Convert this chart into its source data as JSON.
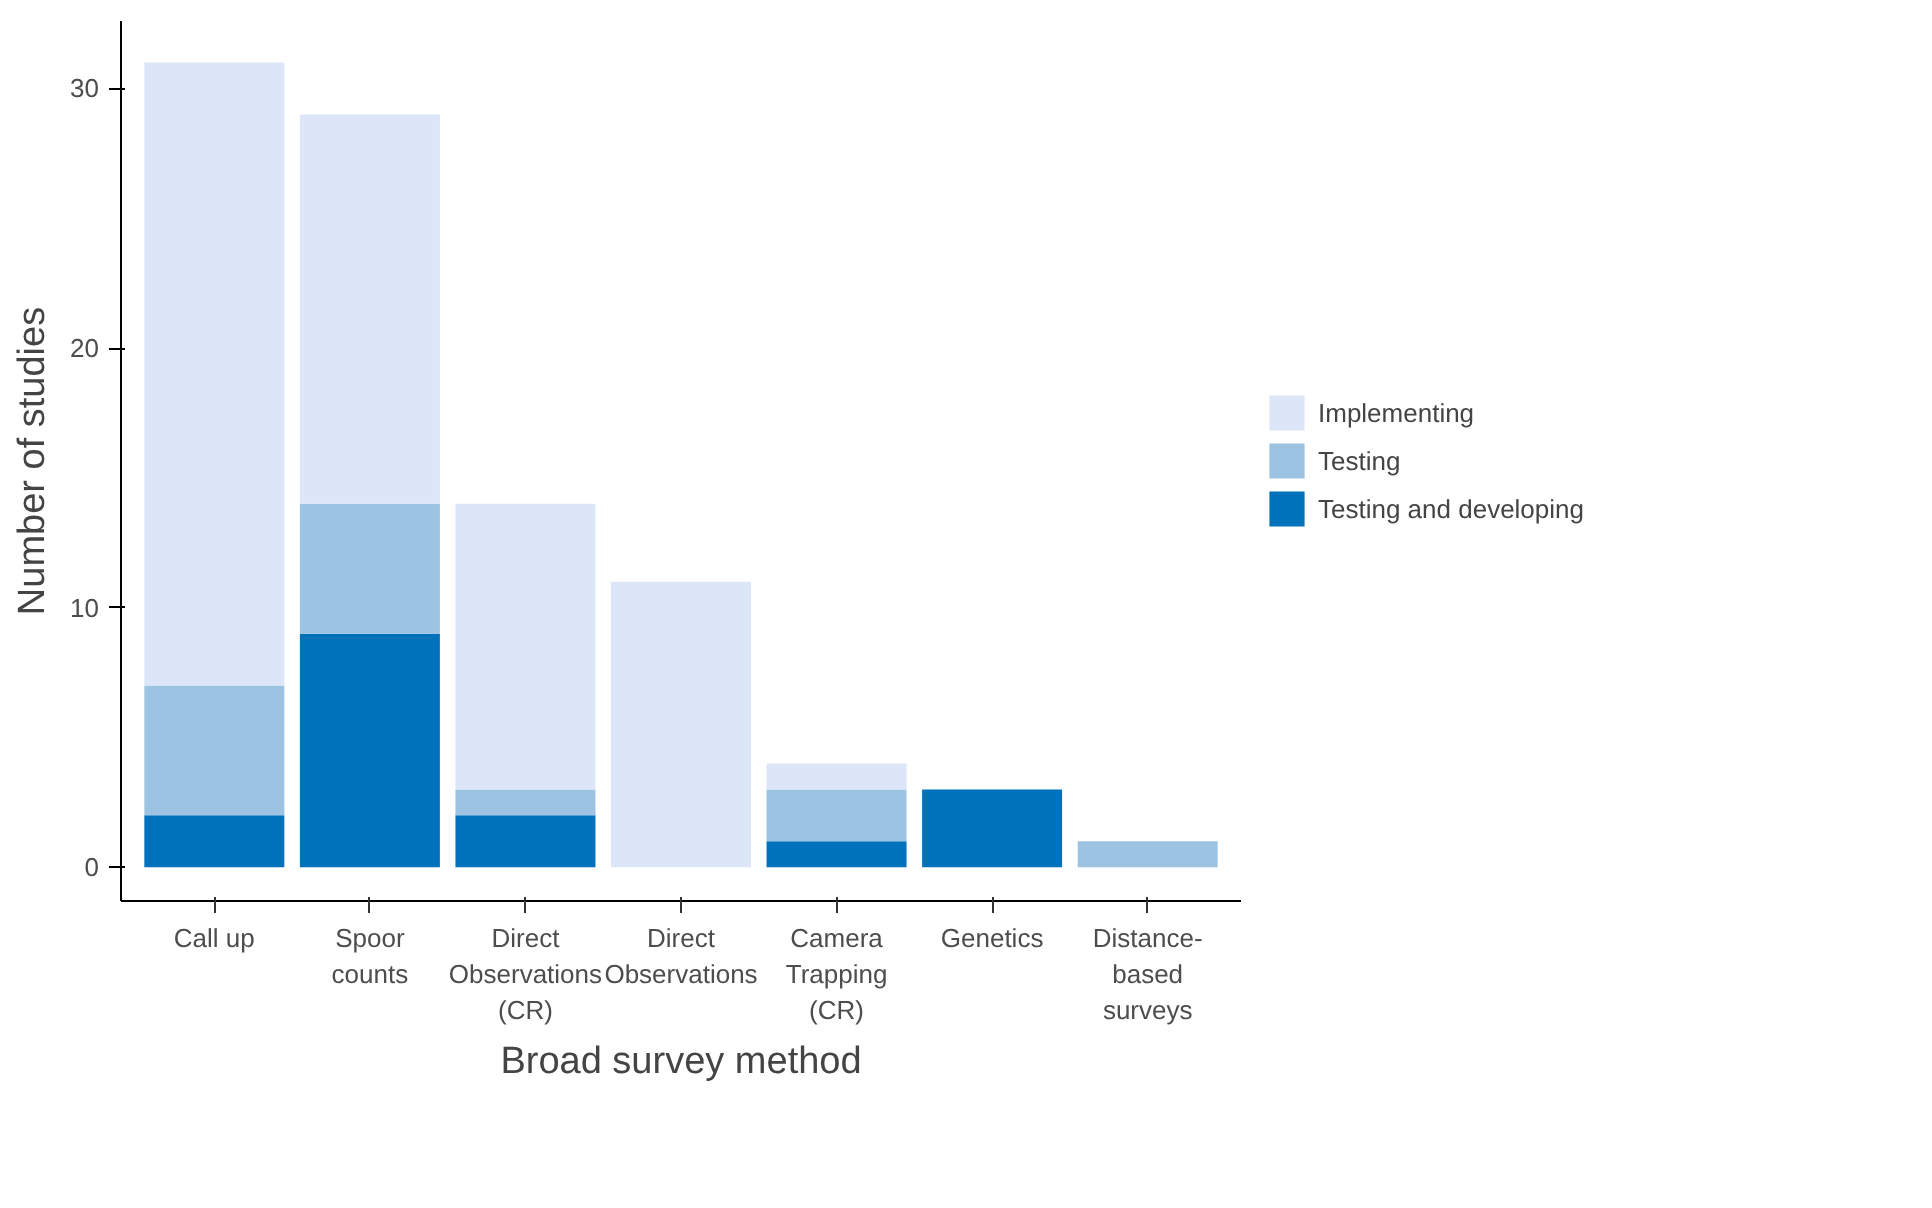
{
  "chart_data": {
    "type": "bar",
    "stacked": true,
    "xlabel": "Broad survey method",
    "ylabel": "Number of studies",
    "categories": [
      "Call up",
      "Spoor\ncounts",
      "Direct\nObservations\n(CR)",
      "Direct\nObservations",
      "Camera\nTrapping\n(CR)",
      "Genetics",
      "Distance-\nbased\nsurveys"
    ],
    "series": [
      {
        "name": "Testing and developing",
        "color": "#0072bb",
        "values": [
          2,
          9,
          2,
          0,
          1,
          3,
          0
        ]
      },
      {
        "name": "Testing",
        "color": "#9dc3e2",
        "values": [
          5,
          5,
          1,
          0,
          2,
          0,
          1
        ]
      },
      {
        "name": "Implementing",
        "color": "#dde6f8",
        "values": [
          24,
          15,
          11,
          11,
          1,
          0,
          0
        ]
      }
    ],
    "ylim": [
      -1.3,
      32.6
    ],
    "yticks": [
      0,
      10,
      20,
      30
    ],
    "grid": false,
    "legend": "right"
  }
}
